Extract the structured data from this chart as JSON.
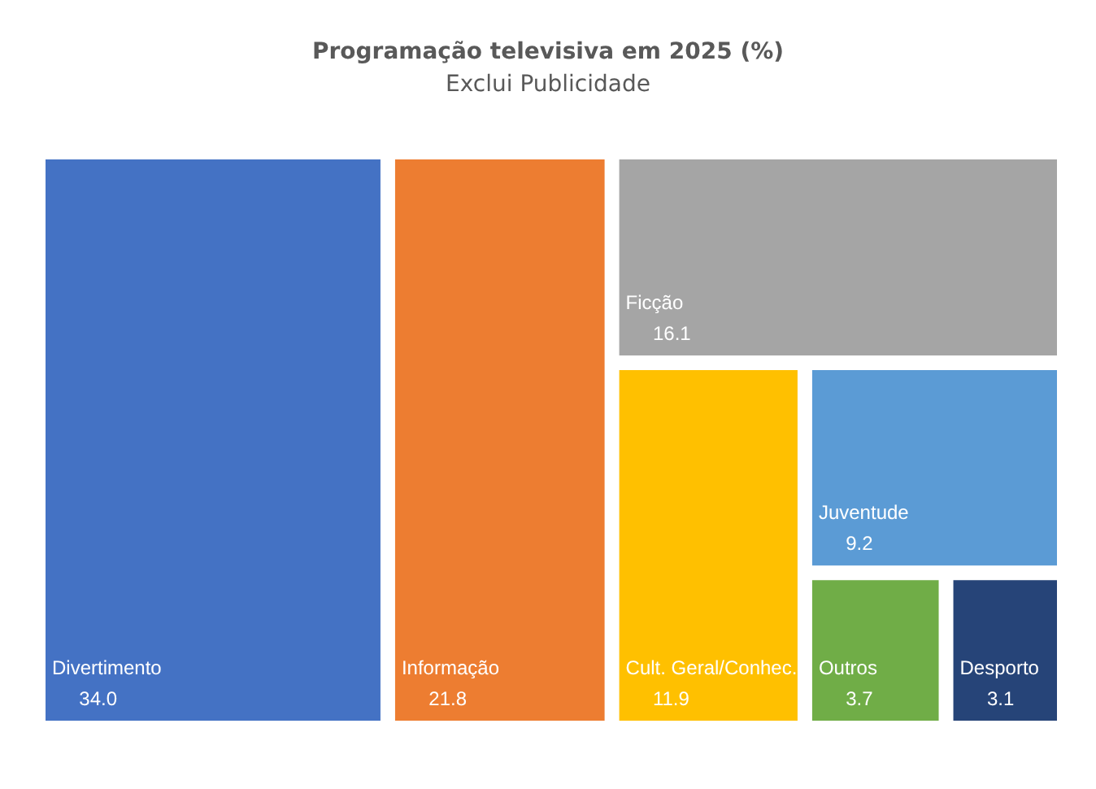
{
  "chart_data": {
    "type": "other",
    "title": "Programação televisiva em 2025 (%)",
    "subtitle": "Exclui Publicidade",
    "categories": [
      "Divertimento",
      "Informação",
      "Ficção",
      "Cult. Geral/Conhec.",
      "Juventude",
      "Outros",
      "Desporto"
    ],
    "values": [
      34.0,
      21.8,
      16.1,
      11.9,
      9.2,
      3.7,
      3.1
    ],
    "colors": [
      "#4472c4",
      "#ed7d31",
      "#a5a5a5",
      "#ffc000",
      "#5b9bd5",
      "#70ad47",
      "#264478"
    ],
    "value_labels": [
      "34.0",
      "21.8",
      "16.1",
      "11.9",
      "9.2",
      "3.7",
      "3.1"
    ]
  }
}
